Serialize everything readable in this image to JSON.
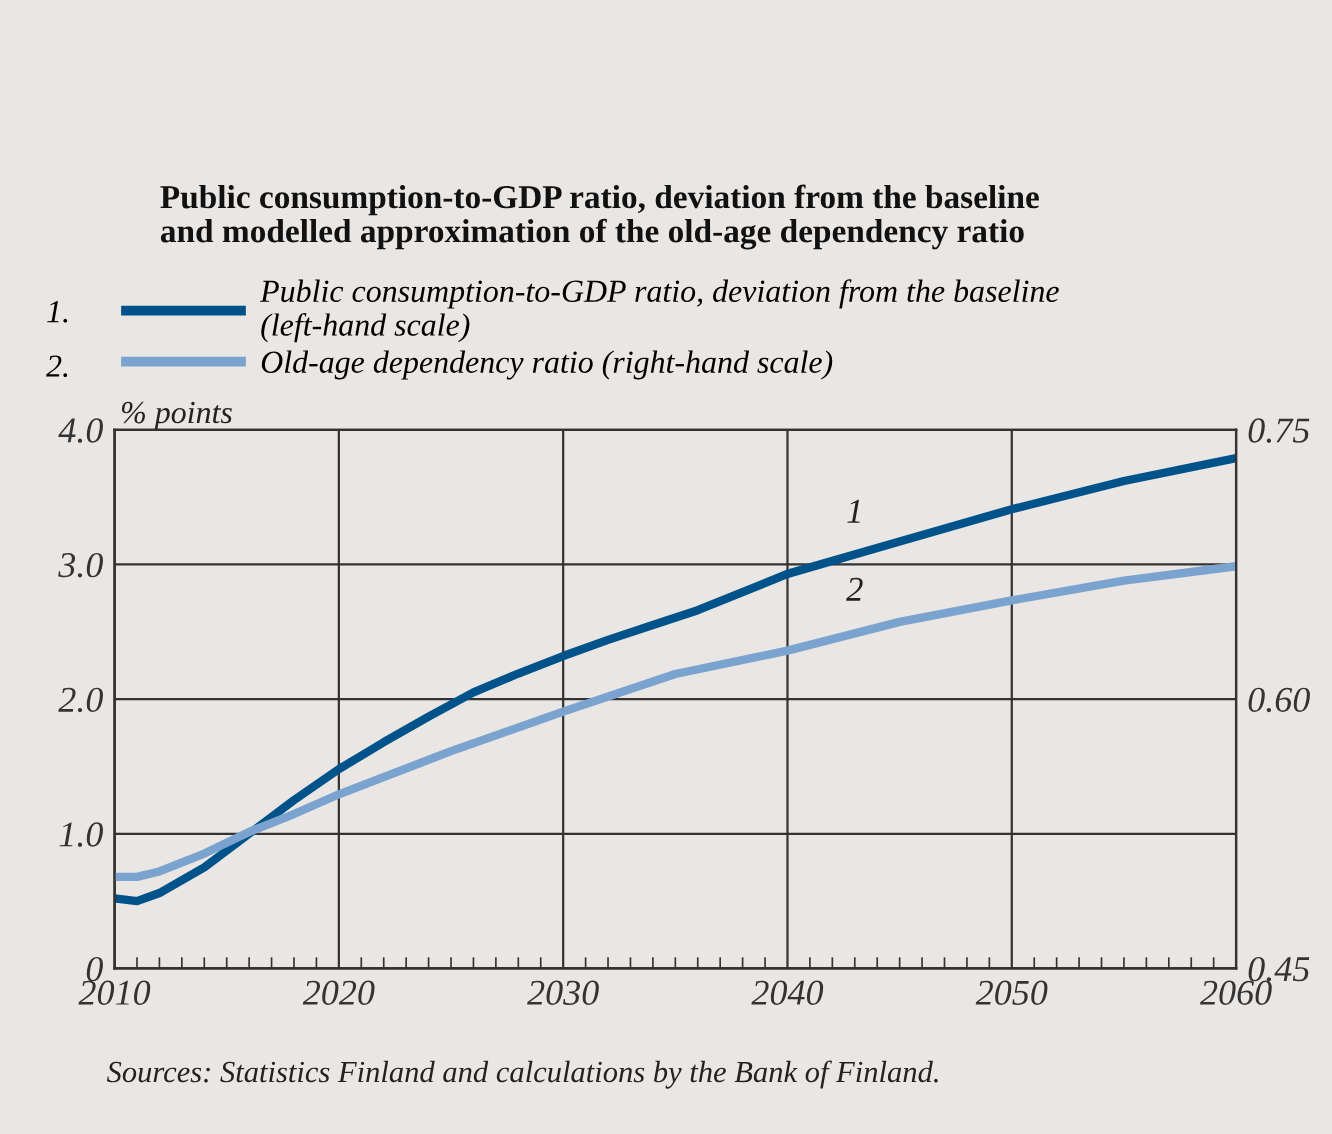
{
  "chart_data": {
    "type": "line",
    "title": "Public consumption-to-GDP ratio, deviation from the baseline\nand modelled approximation of the old-age dependency ratio",
    "ylabel": "% points",
    "series": [
      {
        "name": "Public consumption-to-GDP ratio, deviation from the baseline\n(left-hand scale)",
        "color": "#00538a",
        "x": [
          2010,
          2011,
          2012,
          2014,
          2016,
          2018,
          2020,
          2022,
          2024,
          2026,
          2028,
          2030,
          2032,
          2034,
          2036,
          2040,
          2045,
          2050,
          2055,
          2060
        ],
        "values": [
          0.52,
          0.5,
          0.56,
          0.75,
          1.0,
          1.25,
          1.48,
          1.68,
          1.87,
          2.05,
          2.19,
          2.32,
          2.44,
          2.55,
          2.66,
          2.93,
          3.17,
          3.41,
          3.62,
          3.79
        ]
      },
      {
        "name": "Old-age dependency ratio (right-hand scale)",
        "color": "#7ba3cf",
        "axis": "y2",
        "x": [
          2010,
          2011,
          2012,
          2014,
          2016,
          2018,
          2020,
          2025,
          2030,
          2035,
          2040,
          2045,
          2050,
          2055,
          2060
        ],
        "values": [
          0.501,
          0.501,
          0.504,
          0.514,
          0.526,
          0.536,
          0.547,
          0.571,
          0.593,
          0.614,
          0.627,
          0.643,
          0.655,
          0.666,
          0.674
        ]
      }
    ],
    "xlim": [
      2010,
      2060
    ],
    "xticks": [
      2010,
      2020,
      2030,
      2040,
      2050,
      2060
    ],
    "ylim": [
      0,
      4
    ],
    "yticks": [
      {
        "value": 0,
        "label": "0"
      },
      {
        "value": 1,
        "label": "1.0"
      },
      {
        "value": 2,
        "label": "2.0"
      },
      {
        "value": 3,
        "label": "3.0"
      },
      {
        "value": 4,
        "label": "4.0"
      }
    ],
    "y2lim": [
      0.45,
      0.75
    ],
    "y2ticks": [
      0.45,
      {
        "value": 0.6,
        "label": "0.60"
      },
      0.75
    ],
    "grid": true,
    "legend": "top",
    "line_style": "solid",
    "marker": "none",
    "annotations": [
      "1.",
      "2.",
      {
        "text": "1",
        "x": 2043,
        "y": 3.07
      },
      {
        "text": "2",
        "x": 2043,
        "y": 2.49
      },
      "Sources: Statistics Finland and calculations by the Bank of Finland."
    ]
  }
}
